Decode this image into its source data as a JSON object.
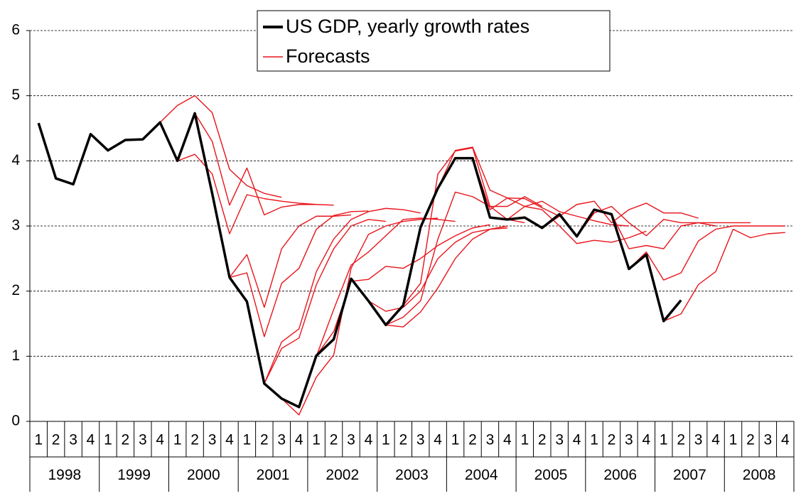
{
  "chart_data": {
    "type": "line",
    "categories": [
      "1",
      "2",
      "3",
      "4",
      "1",
      "2",
      "3",
      "4",
      "1",
      "2",
      "3",
      "4",
      "1",
      "2",
      "3",
      "4",
      "1",
      "2",
      "3",
      "4",
      "1",
      "2",
      "3",
      "4",
      "1",
      "2",
      "3",
      "4",
      "1",
      "2",
      "3",
      "4",
      "1",
      "2",
      "3",
      "4",
      "1",
      "2",
      "3",
      "4",
      "1",
      "2",
      "3",
      "4"
    ],
    "years": [
      "1998",
      "1999",
      "2000",
      "2001",
      "2002",
      "2003",
      "2004",
      "2005",
      "2006",
      "2007",
      "2008"
    ],
    "ylim": [
      0,
      6
    ],
    "yticks": [
      0,
      1,
      2,
      3,
      4,
      5,
      6
    ],
    "grid": true,
    "series": [
      {
        "name": "US GDP, yearly growth rates",
        "color": "#000000",
        "values": [
          4.58,
          3.73,
          3.64,
          4.41,
          4.16,
          4.32,
          4.33,
          4.59,
          4.0,
          4.73,
          3.5,
          2.21,
          1.84,
          0.58,
          0.35,
          0.22,
          1.01,
          1.26,
          2.19,
          1.85,
          1.48,
          1.78,
          2.98,
          3.58,
          4.04,
          4.04,
          3.13,
          3.1,
          3.13,
          2.97,
          3.18,
          2.84,
          3.25,
          3.18,
          2.34,
          2.56,
          1.54,
          1.86,
          null,
          null,
          null,
          null,
          null,
          null
        ]
      }
    ],
    "forecasts": {
      "name": "Forecasts",
      "color": "#e8141b",
      "lines": [
        [
          null,
          null,
          null,
          null,
          null,
          null,
          null,
          4.59,
          4.85,
          5.0,
          4.74,
          3.87,
          3.62,
          3.5,
          3.44,
          null,
          null,
          null,
          null,
          null,
          null,
          null,
          null,
          null,
          null,
          null,
          null,
          null,
          null,
          null,
          null,
          null,
          null,
          null,
          null,
          null,
          null,
          null,
          null,
          null,
          null,
          null,
          null,
          null
        ],
        [
          null,
          null,
          null,
          null,
          null,
          null,
          null,
          null,
          4.0,
          4.73,
          4.3,
          3.32,
          3.89,
          3.17,
          3.29,
          3.33,
          3.33,
          null,
          null,
          null,
          null,
          null,
          null,
          null,
          null,
          null,
          null,
          null,
          null,
          null,
          null,
          null,
          null,
          null,
          null,
          null,
          null,
          null,
          null,
          null,
          null,
          null,
          null,
          null
        ],
        [
          null,
          null,
          null,
          null,
          null,
          null,
          null,
          null,
          4.0,
          4.1,
          3.8,
          2.88,
          3.48,
          3.42,
          3.38,
          3.35,
          3.33,
          3.32,
          null,
          null,
          null,
          null,
          null,
          null,
          null,
          null,
          null,
          null,
          null,
          null,
          null,
          null,
          null,
          null,
          null,
          null,
          null,
          null,
          null,
          null,
          null,
          null,
          null,
          null
        ],
        [
          null,
          null,
          null,
          null,
          null,
          null,
          null,
          null,
          null,
          null,
          3.5,
          2.21,
          2.28,
          1.3,
          2.12,
          2.35,
          2.95,
          3.16,
          3.22,
          3.23,
          null,
          null,
          null,
          null,
          null,
          null,
          null,
          null,
          null,
          null,
          null,
          null,
          null,
          null,
          null,
          null,
          null,
          null,
          null,
          null,
          null,
          null,
          null,
          null
        ],
        [
          null,
          null,
          null,
          null,
          null,
          null,
          null,
          null,
          null,
          null,
          null,
          2.21,
          2.56,
          1.75,
          2.65,
          3.0,
          3.15,
          3.15,
          3.17,
          null,
          null,
          null,
          null,
          null,
          null,
          null,
          null,
          null,
          null,
          null,
          null,
          null,
          null,
          null,
          null,
          null,
          null,
          null,
          null,
          null,
          null,
          null,
          null,
          null
        ],
        [
          null,
          null,
          null,
          null,
          null,
          null,
          null,
          null,
          null,
          null,
          null,
          null,
          1.84,
          0.58,
          1.12,
          1.28,
          2.1,
          2.65,
          3.0,
          3.1,
          3.07,
          null,
          null,
          null,
          null,
          null,
          null,
          null,
          null,
          null,
          null,
          null,
          null,
          null,
          null,
          null,
          null,
          null,
          null,
          null,
          null,
          null,
          null,
          null
        ],
        [
          null,
          null,
          null,
          null,
          null,
          null,
          null,
          null,
          null,
          null,
          null,
          null,
          null,
          0.58,
          1.22,
          1.42,
          2.3,
          2.8,
          3.1,
          3.22,
          3.27,
          3.25,
          3.2,
          null,
          null,
          null,
          null,
          null,
          null,
          null,
          null,
          null,
          null,
          null,
          null,
          null,
          null,
          null,
          null,
          null,
          null,
          null,
          null,
          null
        ],
        [
          null,
          null,
          null,
          null,
          null,
          null,
          null,
          null,
          null,
          null,
          null,
          null,
          null,
          null,
          0.35,
          0.1,
          0.68,
          1.02,
          2.35,
          2.87,
          3.0,
          3.07,
          3.1,
          3.12,
          null,
          null,
          null,
          null,
          null,
          null,
          null,
          null,
          null,
          null,
          null,
          null,
          null,
          null,
          null,
          null,
          null,
          null,
          null,
          null
        ],
        [
          null,
          null,
          null,
          null,
          null,
          null,
          null,
          null,
          null,
          null,
          null,
          null,
          null,
          null,
          null,
          0.22,
          1.0,
          1.72,
          2.4,
          2.6,
          2.85,
          3.1,
          3.12,
          3.1,
          3.07,
          null,
          null,
          null,
          null,
          null,
          null,
          null,
          null,
          null,
          null,
          null,
          null,
          null,
          null,
          null,
          null,
          null,
          null,
          null
        ],
        [
          null,
          null,
          null,
          null,
          null,
          null,
          null,
          null,
          null,
          null,
          null,
          null,
          null,
          null,
          null,
          null,
          1.01,
          1.38,
          2.15,
          2.18,
          2.38,
          2.35,
          2.5,
          2.7,
          2.85,
          2.97,
          3.02,
          null,
          null,
          null,
          null,
          null,
          null,
          null,
          null,
          null,
          null,
          null,
          null,
          null,
          null,
          null,
          null,
          null
        ],
        [
          null,
          null,
          null,
          null,
          null,
          null,
          null,
          null,
          null,
          null,
          null,
          null,
          null,
          null,
          null,
          null,
          null,
          null,
          2.19,
          1.85,
          1.69,
          1.75,
          2.0,
          2.5,
          2.75,
          2.9,
          2.95,
          3.0,
          null,
          null,
          null,
          null,
          null,
          null,
          null,
          null,
          null,
          null,
          null,
          null,
          null,
          null,
          null,
          null
        ],
        [
          null,
          null,
          null,
          null,
          null,
          null,
          null,
          null,
          null,
          null,
          null,
          null,
          null,
          null,
          null,
          null,
          null,
          null,
          null,
          1.85,
          1.48,
          1.45,
          1.68,
          2.05,
          2.5,
          2.8,
          2.95,
          2.97,
          null,
          null,
          null,
          null,
          null,
          null,
          null,
          null,
          null,
          null,
          null,
          null,
          null,
          null,
          null,
          null
        ],
        [
          null,
          null,
          null,
          null,
          null,
          null,
          null,
          null,
          null,
          null,
          null,
          null,
          null,
          null,
          null,
          null,
          null,
          null,
          null,
          null,
          1.48,
          1.6,
          1.85,
          2.8,
          3.52,
          3.45,
          3.3,
          3.1,
          3.05,
          null,
          null,
          null,
          null,
          null,
          null,
          null,
          null,
          null,
          null,
          null,
          null,
          null,
          null,
          null
        ],
        [
          null,
          null,
          null,
          null,
          null,
          null,
          null,
          null,
          null,
          null,
          null,
          null,
          null,
          null,
          null,
          null,
          null,
          null,
          null,
          null,
          null,
          1.78,
          2.12,
          3.8,
          4.15,
          4.2,
          3.3,
          3.3,
          3.45,
          3.3,
          null,
          null,
          null,
          null,
          null,
          null,
          null,
          null,
          null,
          null,
          null,
          null,
          null,
          null
        ],
        [
          null,
          null,
          null,
          null,
          null,
          null,
          null,
          null,
          null,
          null,
          null,
          null,
          null,
          null,
          null,
          null,
          null,
          null,
          null,
          null,
          null,
          null,
          null,
          3.58,
          4.16,
          4.21,
          3.55,
          3.43,
          3.42,
          3.28,
          3.15,
          null,
          null,
          null,
          null,
          null,
          null,
          null,
          null,
          null,
          null,
          null,
          null,
          null
        ],
        [
          null,
          null,
          null,
          null,
          null,
          null,
          null,
          null,
          null,
          null,
          null,
          null,
          null,
          null,
          null,
          null,
          null,
          null,
          null,
          null,
          null,
          null,
          null,
          null,
          null,
          4.04,
          3.25,
          3.43,
          3.3,
          3.38,
          3.22,
          3.15,
          3.08,
          3.02,
          3.0,
          null,
          null,
          null,
          null,
          null,
          null,
          null,
          null,
          null
        ],
        [
          null,
          null,
          null,
          null,
          null,
          null,
          null,
          null,
          null,
          null,
          null,
          null,
          null,
          null,
          null,
          null,
          null,
          null,
          null,
          null,
          null,
          null,
          null,
          null,
          null,
          null,
          null,
          3.1,
          3.3,
          3.25,
          3.0,
          2.73,
          2.78,
          2.75,
          2.82,
          2.92,
          null,
          null,
          null,
          null,
          null,
          null,
          null,
          null
        ],
        [
          null,
          null,
          null,
          null,
          null,
          null,
          null,
          null,
          null,
          null,
          null,
          null,
          null,
          null,
          null,
          null,
          null,
          null,
          null,
          null,
          null,
          null,
          null,
          null,
          null,
          null,
          null,
          null,
          null,
          2.97,
          3.15,
          3.33,
          3.38,
          3.05,
          3.25,
          3.35,
          3.2,
          3.2,
          3.12,
          null,
          null,
          null,
          null,
          null
        ],
        [
          null,
          null,
          null,
          null,
          null,
          null,
          null,
          null,
          null,
          null,
          null,
          null,
          null,
          null,
          null,
          null,
          null,
          null,
          null,
          null,
          null,
          null,
          null,
          null,
          null,
          null,
          null,
          null,
          null,
          null,
          null,
          2.84,
          3.2,
          3.3,
          3.05,
          2.85,
          3.1,
          3.05,
          3.05,
          3.0,
          null,
          null,
          null,
          null
        ],
        [
          null,
          null,
          null,
          null,
          null,
          null,
          null,
          null,
          null,
          null,
          null,
          null,
          null,
          null,
          null,
          null,
          null,
          null,
          null,
          null,
          null,
          null,
          null,
          null,
          null,
          null,
          null,
          null,
          null,
          null,
          null,
          null,
          null,
          3.18,
          2.65,
          2.7,
          2.65,
          3.0,
          3.05,
          3.05,
          3.05,
          3.05,
          null,
          null
        ],
        [
          null,
          null,
          null,
          null,
          null,
          null,
          null,
          null,
          null,
          null,
          null,
          null,
          null,
          null,
          null,
          null,
          null,
          null,
          null,
          null,
          null,
          null,
          null,
          null,
          null,
          null,
          null,
          null,
          null,
          null,
          null,
          null,
          null,
          null,
          2.34,
          2.6,
          2.17,
          2.28,
          2.77,
          2.95,
          3.0,
          3.0,
          3.0,
          3.0
        ],
        [
          null,
          null,
          null,
          null,
          null,
          null,
          null,
          null,
          null,
          null,
          null,
          null,
          null,
          null,
          null,
          null,
          null,
          null,
          null,
          null,
          null,
          null,
          null,
          null,
          null,
          null,
          null,
          null,
          null,
          null,
          null,
          null,
          null,
          null,
          null,
          null,
          1.54,
          1.65,
          2.1,
          2.3,
          2.95,
          2.82,
          2.88,
          2.9
        ]
      ]
    }
  }
}
